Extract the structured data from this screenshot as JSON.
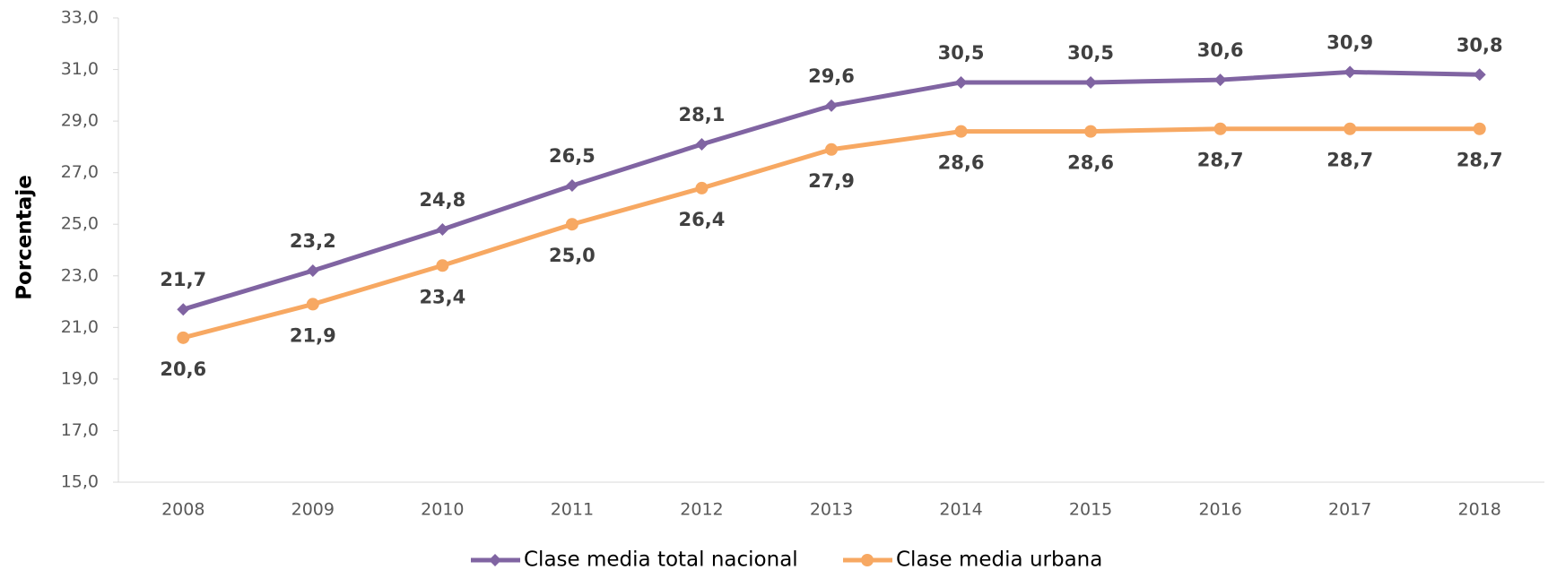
{
  "chart_data": {
    "type": "line",
    "y_label": "Porcentaje",
    "categories": [
      "2008",
      "2009",
      "2010",
      "2011",
      "2012",
      "2013",
      "2014",
      "2015",
      "2016",
      "2017",
      "2018"
    ],
    "series": [
      {
        "name": "Clase media total nacional",
        "color": "#8064a2",
        "marker": "diamond",
        "label_position": "above",
        "values": [
          21.7,
          23.2,
          24.8,
          26.5,
          28.1,
          29.6,
          30.5,
          30.5,
          30.6,
          30.9,
          30.8
        ],
        "value_labels": [
          "21,7",
          "23,2",
          "24,8",
          "26,5",
          "28,1",
          "29,6",
          "30,5",
          "30,5",
          "30,6",
          "30,9",
          "30,8"
        ]
      },
      {
        "name": "Clase media urbana",
        "color": "#f7a862",
        "marker": "circle",
        "label_position": "below",
        "values": [
          20.6,
          21.9,
          23.4,
          25.0,
          26.4,
          27.9,
          28.6,
          28.6,
          28.7,
          28.7,
          28.7
        ],
        "value_labels": [
          "20,6",
          "21,9",
          "23,4",
          "25,0",
          "26,4",
          "27,9",
          "28,6",
          "28,6",
          "28,7",
          "28,7",
          "28,7"
        ]
      }
    ],
    "ylim": [
      15,
      33
    ],
    "yticks": [
      {
        "value": 15,
        "label": "15,0"
      },
      {
        "value": 17,
        "label": "17,0"
      },
      {
        "value": 19,
        "label": "19,0"
      },
      {
        "value": 21,
        "label": "21,0"
      },
      {
        "value": 23,
        "label": "23,0"
      },
      {
        "value": 25,
        "label": "25,0"
      },
      {
        "value": 27,
        "label": "27,0"
      },
      {
        "value": 29,
        "label": "29,0"
      },
      {
        "value": 31,
        "label": "31,0"
      },
      {
        "value": 33,
        "label": "33,0"
      }
    ],
    "legend": "bottom"
  }
}
